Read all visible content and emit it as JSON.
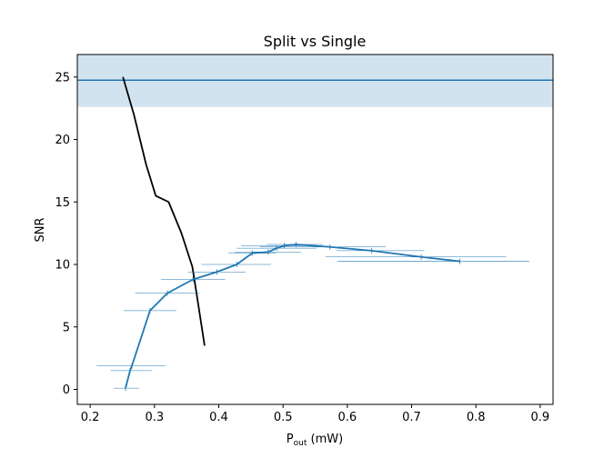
{
  "chart_data": {
    "type": "line",
    "title": "Split vs Single",
    "xlabel": "P",
    "xlabel_sub": "out",
    "xlabel_unit": " (mW)",
    "ylabel": "SNR",
    "xlim": [
      0.18,
      0.92
    ],
    "ylim": [
      -1.2,
      26.8
    ],
    "grid": false,
    "legend": "none",
    "xticks": [
      0.2,
      0.3,
      0.4,
      0.5,
      0.6,
      0.7,
      0.8,
      0.9
    ],
    "xtick_labels": [
      "0.2",
      "0.3",
      "0.4",
      "0.5",
      "0.6",
      "0.7",
      "0.8",
      "0.9"
    ],
    "yticks": [
      0,
      5,
      10,
      15,
      20,
      25
    ],
    "ytick_labels": [
      "0",
      "5",
      "10",
      "15",
      "20",
      "25"
    ],
    "reference": {
      "y": 24.75,
      "band": [
        22.6,
        26.8
      ],
      "line_color": "#1f77b4",
      "band_color": "#d2e3f0"
    },
    "series": [
      {
        "color": "#000000",
        "x": [
          0.251,
          0.268,
          0.287,
          0.302,
          0.322,
          0.342,
          0.359,
          0.366,
          0.378
        ],
        "y": [
          25.0,
          22.0,
          18.0,
          15.5,
          15.0,
          12.5,
          9.8,
          7.5,
          3.5
        ]
      },
      {
        "color": "#1f77b4",
        "x": [
          0.255,
          0.262,
          0.265,
          0.293,
          0.32,
          0.36,
          0.397,
          0.428,
          0.452,
          0.477,
          0.49,
          0.502,
          0.52,
          0.573,
          0.638,
          0.715,
          0.775
        ],
        "y": [
          0.1,
          1.5,
          1.9,
          6.3,
          7.7,
          8.8,
          9.4,
          10.0,
          10.9,
          11.0,
          11.3,
          11.5,
          11.6,
          11.4,
          11.1,
          10.6,
          10.25
        ],
        "xerr_low": [
          0.018,
          0.03,
          0.055,
          0.041,
          0.05,
          0.05,
          0.045,
          0.055,
          0.037,
          0.052,
          0.062,
          0.067,
          0.045,
          0.109,
          0.055,
          0.149,
          0.19
        ],
        "xerr_high": [
          0.021,
          0.034,
          0.052,
          0.041,
          0.05,
          0.05,
          0.045,
          0.053,
          0.037,
          0.051,
          0.062,
          0.056,
          0.042,
          0.087,
          0.082,
          0.132,
          0.108
        ]
      }
    ]
  }
}
